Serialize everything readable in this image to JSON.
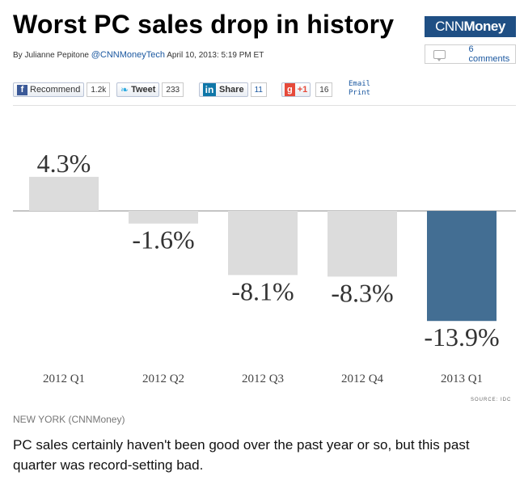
{
  "headline": "Worst PC sales drop in history",
  "brand": {
    "logo_light": "CNN",
    "logo_bold": "Money",
    "color": "#1f4f84"
  },
  "byline": {
    "prefix": "By Julianne Pepitone",
    "handle": "@CNNMoneyTech",
    "date": "April 10, 2013: 5:19 PM ET"
  },
  "comments": {
    "label": "6 comments",
    "icon": "comment-bubble-icon"
  },
  "social": {
    "facebook": {
      "label": "Recommend",
      "count": "1.2k",
      "icon": "facebook-icon"
    },
    "twitter": {
      "label": "Tweet",
      "count": "233",
      "icon": "twitter-bird-icon"
    },
    "linkedin": {
      "label": "Share",
      "count": "11",
      "icon": "linkedin-icon"
    },
    "google": {
      "label": "+1",
      "count": "16",
      "icon": "google-plus-icon"
    },
    "email_label": "Email",
    "print_label": "Print"
  },
  "chart_data": {
    "type": "bar",
    "categories": [
      "2012 Q1",
      "2012 Q2",
      "2012 Q3",
      "2012 Q4",
      "2013 Q1"
    ],
    "values": [
      4.3,
      -1.6,
      -8.1,
      -8.3,
      -13.9
    ],
    "labels": [
      "4.3%",
      "-1.6%",
      "-8.1%",
      "-8.3%",
      "-13.9%"
    ],
    "colors": [
      "#dcdcdc",
      "#dcdcdc",
      "#dcdcdc",
      "#dcdcdc",
      "#436e93"
    ],
    "ylim": [
      -13.9,
      4.3
    ],
    "source": "SOURCE: IDC"
  },
  "article": {
    "dateline": "NEW YORK (CNNMoney)",
    "lead": "PC sales certainly haven't been good over the past year or so, but this past quarter was record-setting bad."
  }
}
